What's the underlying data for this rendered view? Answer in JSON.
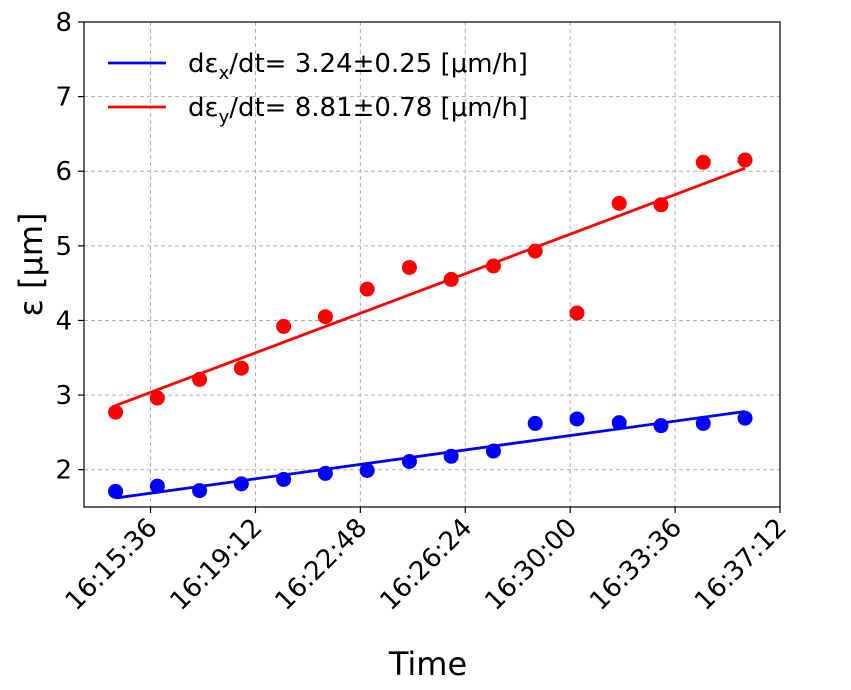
{
  "chart_data": {
    "type": "scatter",
    "title": "",
    "xlabel": "Time",
    "ylabel": "ε [μm]",
    "x_ticks": [
      "16:15:36",
      "16:19:12",
      "16:22:48",
      "16:26:24",
      "16:30:00",
      "16:33:36",
      "16:37:12"
    ],
    "xlim": [
      "16:13:19",
      "16:37:12"
    ],
    "ylim": [
      1.5,
      8
    ],
    "y_ticks": [
      2,
      3,
      4,
      5,
      6,
      7,
      8
    ],
    "grid": true,
    "legend_placement": "top-left",
    "series": [
      {
        "name": "dεx/dt= 3.24±0.25 [μm/h]",
        "legend_main": "dε",
        "legend_sub": "x",
        "legend_rest": "/dt= 3.24±0.25 [μm/h]",
        "color": "#0000ff",
        "points": [
          {
            "x": "16:14:24",
            "y": 1.71
          },
          {
            "x": "16:15:50",
            "y": 1.78
          },
          {
            "x": "16:17:17",
            "y": 1.72
          },
          {
            "x": "16:18:43",
            "y": 1.81
          },
          {
            "x": "16:20:10",
            "y": 1.87
          },
          {
            "x": "16:21:36",
            "y": 1.95
          },
          {
            "x": "16:23:02",
            "y": 1.99
          },
          {
            "x": "16:24:29",
            "y": 2.11
          },
          {
            "x": "16:25:55",
            "y": 2.18
          },
          {
            "x": "16:27:22",
            "y": 2.25
          },
          {
            "x": "16:28:48",
            "y": 2.62
          },
          {
            "x": "16:30:14",
            "y": 2.68
          },
          {
            "x": "16:31:41",
            "y": 2.63
          },
          {
            "x": "16:33:07",
            "y": 2.59
          },
          {
            "x": "16:34:34",
            "y": 2.62
          },
          {
            "x": "16:36:00",
            "y": 2.69
          }
        ],
        "fit_line": [
          {
            "x": "16:14:24",
            "y": 1.62
          },
          {
            "x": "16:36:00",
            "y": 2.78
          }
        ]
      },
      {
        "name": "dεy/dt= 8.81±0.78 [μm/h]",
        "legend_main": "dε",
        "legend_sub": "y",
        "legend_rest": "/dt= 8.81±0.78 [μm/h]",
        "color": "#ff0000",
        "points": [
          {
            "x": "16:14:24",
            "y": 2.77
          },
          {
            "x": "16:15:50",
            "y": 2.96
          },
          {
            "x": "16:17:17",
            "y": 3.21
          },
          {
            "x": "16:18:43",
            "y": 3.36
          },
          {
            "x": "16:20:10",
            "y": 3.92
          },
          {
            "x": "16:21:36",
            "y": 4.05
          },
          {
            "x": "16:23:02",
            "y": 4.42
          },
          {
            "x": "16:24:29",
            "y": 4.71
          },
          {
            "x": "16:25:55",
            "y": 4.55
          },
          {
            "x": "16:27:22",
            "y": 4.73
          },
          {
            "x": "16:28:48",
            "y": 4.93
          },
          {
            "x": "16:30:14",
            "y": 4.1
          },
          {
            "x": "16:31:41",
            "y": 5.57
          },
          {
            "x": "16:33:07",
            "y": 5.55
          },
          {
            "x": "16:34:34",
            "y": 6.12
          },
          {
            "x": "16:36:00",
            "y": 6.15
          }
        ],
        "fit_line": [
          {
            "x": "16:14:24",
            "y": 2.86
          },
          {
            "x": "16:36:00",
            "y": 6.04
          }
        ]
      }
    ]
  }
}
